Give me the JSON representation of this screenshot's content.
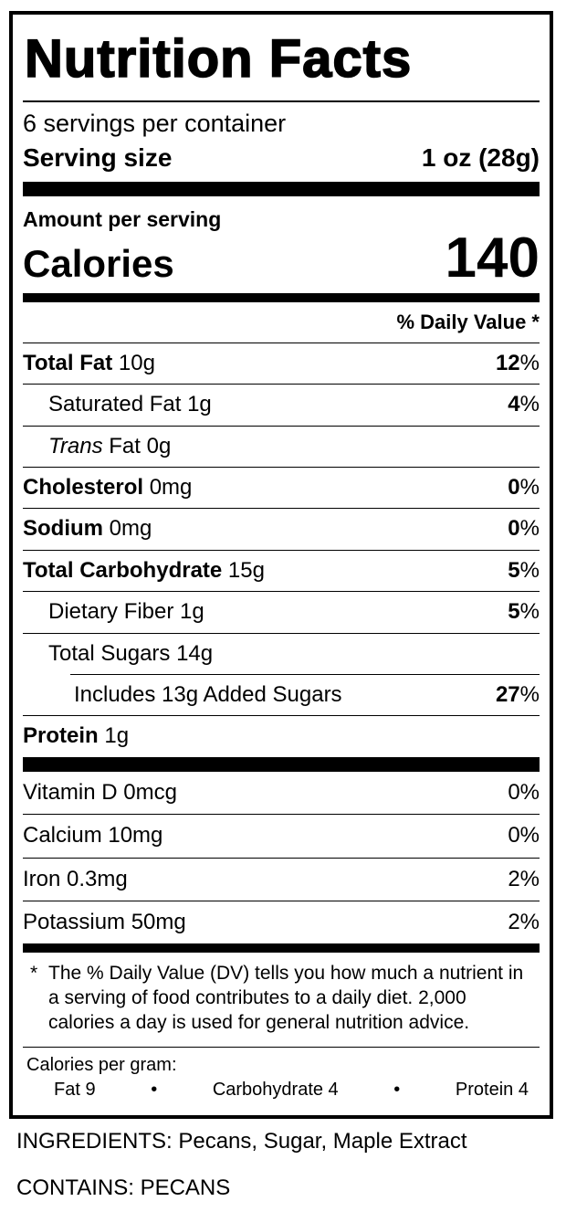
{
  "label": {
    "title": "Nutrition Facts",
    "servings_per_container": "6 servings per container",
    "serving_size": {
      "label": "Serving size",
      "value": "1 oz (28g)"
    },
    "amount_per_serving": "Amount per serving",
    "calories": {
      "label": "Calories",
      "value": "140"
    },
    "daily_value_header": "% Daily Value *",
    "nutrients": [
      {
        "bold": "Total Fat",
        "rest": " 10g",
        "dv_num": "12",
        "dv_sym": "%"
      },
      {
        "rest": "Saturated Fat 1g",
        "dv_num": "4",
        "dv_sym": "%"
      },
      {
        "italic": "Trans",
        "rest": " Fat 0g"
      },
      {
        "bold": "Cholesterol",
        "rest": " 0mg",
        "dv_num": "0",
        "dv_sym": "%"
      },
      {
        "bold": "Sodium",
        "rest": " 0mg",
        "dv_num": "0",
        "dv_sym": "%"
      },
      {
        "bold": "Total Carbohydrate",
        "rest": " 15g",
        "dv_num": "5",
        "dv_sym": "%"
      },
      {
        "rest": "Dietary Fiber 1g",
        "dv_num": "5",
        "dv_sym": "%"
      },
      {
        "rest": "Total Sugars 14g"
      },
      {
        "rest": "Includes 13g Added Sugars",
        "dv_num": "27",
        "dv_sym": "%"
      },
      {
        "bold": "Protein",
        "rest": " 1g"
      }
    ],
    "vitamins": [
      {
        "text": "Vitamin D 0mcg",
        "dv": "0%"
      },
      {
        "text": "Calcium 10mg",
        "dv": "0%"
      },
      {
        "text": "Iron 0.3mg",
        "dv": "2%"
      },
      {
        "text": "Potassium 50mg",
        "dv": "2%"
      }
    ],
    "footnote": {
      "marker": "*",
      "text": "The % Daily Value (DV) tells you how much a nutrient in a serving of food contributes to a daily diet. 2,000 calories a day is used for general nutrition advice."
    },
    "calories_per_gram": {
      "label": "Calories per gram:",
      "items": [
        "Fat 9",
        "•",
        "Carbohydrate 4",
        "•",
        "Protein 4"
      ]
    }
  },
  "below_label": {
    "ingredients": "INGREDIENTS: Pecans, Sugar, Maple Extract",
    "contains": "CONTAINS: PECANS"
  }
}
